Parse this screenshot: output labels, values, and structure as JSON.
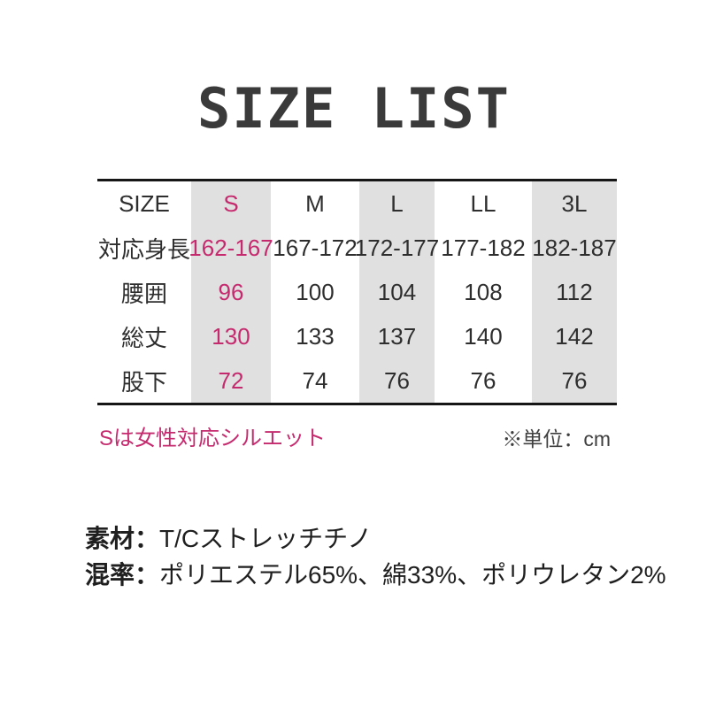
{
  "title": "SIZE LIST",
  "table": {
    "corner": "SIZE",
    "columns": [
      "S",
      "M",
      "L",
      "LL",
      "3L"
    ],
    "rows": [
      {
        "label": "対応身長",
        "values": [
          "162-167",
          "167-172",
          "172-177",
          "177-182",
          "182-187"
        ]
      },
      {
        "label": "腰囲",
        "values": [
          "96",
          "100",
          "104",
          "108",
          "112"
        ]
      },
      {
        "label": "総丈",
        "values": [
          "130",
          "133",
          "137",
          "140",
          "142"
        ]
      },
      {
        "label": "股下",
        "values": [
          "72",
          "74",
          "76",
          "76",
          "76"
        ]
      }
    ]
  },
  "notes": {
    "s_note": "Sは女性対応シルエット",
    "unit": "※単位：cm"
  },
  "materials": [
    {
      "label": "素材：",
      "value": "T/Cストレッチチノ"
    },
    {
      "label": "混率：",
      "value": "ポリエステル65%、綿33%、ポリウレタン2%"
    }
  ],
  "colors": {
    "accent_pink": "#c62a6e",
    "highlight_gray": "#e0e0e0",
    "text_dark": "#2e2e2e",
    "line_black": "#161616"
  }
}
